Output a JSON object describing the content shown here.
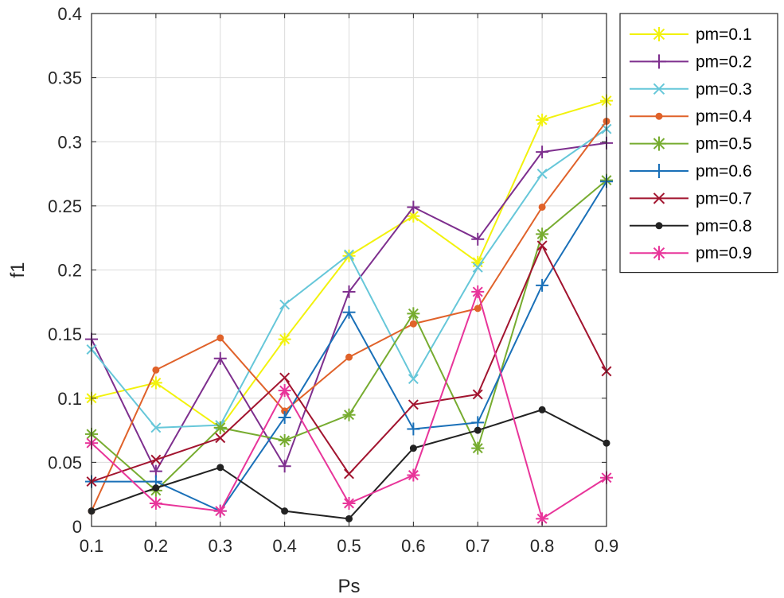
{
  "chart_data": {
    "type": "line",
    "title": "",
    "xlabel": "Ps",
    "ylabel": "f1",
    "x": [
      0.1,
      0.2,
      0.3,
      0.4,
      0.5,
      0.6,
      0.7,
      0.8,
      0.9
    ],
    "xlim": [
      0.1,
      0.9
    ],
    "ylim": [
      0,
      0.4
    ],
    "xticks": [
      "0.1",
      "0.2",
      "0.3",
      "0.4",
      "0.5",
      "0.6",
      "0.7",
      "0.8",
      "0.9"
    ],
    "yticks": [
      "0",
      "0.05",
      "0.1",
      "0.15",
      "0.2",
      "0.25",
      "0.3",
      "0.35",
      "0.4"
    ],
    "grid": true,
    "legend_position": "outside-right-top",
    "series": [
      {
        "name": "pm=0.1",
        "color": "#f2f20d",
        "marker": "asterisk",
        "values": [
          0.1,
          0.112,
          0.077,
          0.146,
          0.211,
          0.242,
          0.206,
          0.317,
          0.332
        ]
      },
      {
        "name": "pm=0.2",
        "color": "#7e2f8e",
        "marker": "plus",
        "values": [
          0.146,
          0.043,
          0.131,
          0.047,
          0.183,
          0.249,
          0.224,
          0.292,
          0.299
        ]
      },
      {
        "name": "pm=0.3",
        "color": "#66c7d9",
        "marker": "x",
        "values": [
          0.138,
          0.077,
          0.079,
          0.173,
          0.212,
          0.115,
          0.202,
          0.275,
          0.31
        ]
      },
      {
        "name": "pm=0.4",
        "color": "#e0622a",
        "marker": "dot",
        "values": [
          0.012,
          0.122,
          0.147,
          0.09,
          0.132,
          0.158,
          0.17,
          0.249,
          0.316
        ]
      },
      {
        "name": "pm=0.5",
        "color": "#77ac30",
        "marker": "asterisk",
        "values": [
          0.072,
          0.028,
          0.077,
          0.067,
          0.087,
          0.166,
          0.061,
          0.228,
          0.27
        ]
      },
      {
        "name": "pm=0.6",
        "color": "#1a70b8",
        "marker": "plus",
        "values": [
          0.035,
          0.035,
          0.012,
          0.085,
          0.167,
          0.076,
          0.081,
          0.188,
          0.269
        ]
      },
      {
        "name": "pm=0.7",
        "color": "#a2142f",
        "marker": "x",
        "values": [
          0.035,
          0.052,
          0.069,
          0.116,
          0.041,
          0.095,
          0.103,
          0.219,
          0.121
        ]
      },
      {
        "name": "pm=0.8",
        "color": "#222222",
        "marker": "dot",
        "values": [
          0.012,
          0.03,
          0.046,
          0.012,
          0.006,
          0.061,
          0.075,
          0.091,
          0.065
        ]
      },
      {
        "name": "pm=0.9",
        "color": "#e8359a",
        "marker": "asterisk",
        "values": [
          0.065,
          0.018,
          0.012,
          0.106,
          0.018,
          0.04,
          0.183,
          0.006,
          0.038
        ]
      }
    ]
  }
}
